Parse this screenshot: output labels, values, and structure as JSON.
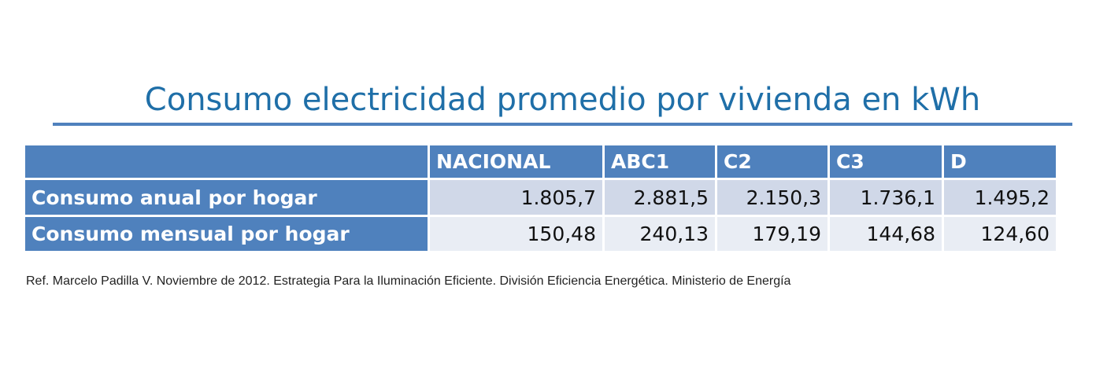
{
  "title": "Consumo electricidad promedio por vivienda en kWh",
  "table": {
    "columns": [
      "NACIONAL",
      "ABC1",
      "C2",
      "C3",
      "D"
    ],
    "rows": [
      {
        "label": "Consumo anual por hogar",
        "values": [
          "1.805,7",
          "2.881,5",
          "2.150,3",
          "1.736,1",
          "1.495,2"
        ]
      },
      {
        "label": "Consumo mensual por hogar",
        "values": [
          "150,48",
          "240,13",
          "179,19",
          "144,68",
          "124,60"
        ]
      }
    ]
  },
  "reference": "Ref. Marcelo Padilla V. Noviembre de 2012. Estrategia Para la Iluminación Eficiente. División Eficiencia Energética. Ministerio de Energía"
}
